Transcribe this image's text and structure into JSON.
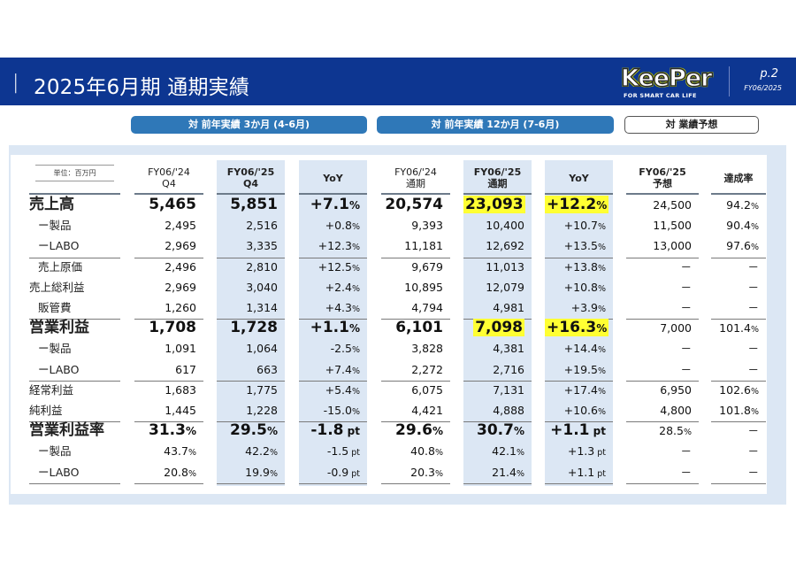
{
  "header": {
    "bar": "|",
    "title": "2025年6月期 通期実績",
    "logo_word": "KeePer",
    "logo_tagline": "FOR SMART CAR LIFE",
    "page_number": "p.2",
    "fiscal_label": "FY06/2025",
    "background_color": "#0d3691"
  },
  "section_pills": [
    {
      "label": "対 前年実績  3か月 (4-6月)",
      "style": "blue"
    },
    {
      "label": "対 前年実績  12か月 (7-6月)",
      "style": "blue"
    },
    {
      "label": "対 業績予想",
      "style": "outline"
    }
  ],
  "table": {
    "unit_label": "単位：百万円",
    "columns": [
      {
        "line1": "FY06/'24",
        "line2": "Q4",
        "bold": false,
        "shaded": false
      },
      {
        "line1": "FY06/'25",
        "line2": "Q4",
        "bold": true,
        "shaded": true
      },
      {
        "line1": "YoY",
        "line2": "",
        "bold": true,
        "shaded": true
      },
      {
        "line1": "FY06/'24",
        "line2": "通期",
        "bold": false,
        "shaded": false
      },
      {
        "line1": "FY06/'25",
        "line2": "通期",
        "bold": true,
        "shaded": true
      },
      {
        "line1": "YoY",
        "line2": "",
        "bold": true,
        "shaded": true
      },
      {
        "line1": "FY06/'25",
        "line2": "予想",
        "bold": true,
        "shaded": false
      },
      {
        "line1": "達成率",
        "line2": "",
        "bold": true,
        "shaded": false
      }
    ],
    "rows": [
      {
        "label": "売上高",
        "big": true,
        "values": [
          "5,465",
          "5,851",
          "+7.1",
          "20,574",
          "23,093",
          "+12.2",
          "24,500",
          "94.2"
        ],
        "units": [
          "",
          "",
          "%",
          "",
          "",
          "%",
          "",
          "%"
        ],
        "highlight": [
          4,
          5
        ]
      },
      {
        "label": "ー製品",
        "big": false,
        "values": [
          "2,495",
          "2,516",
          "+0.8",
          "9,393",
          "10,400",
          "+10.7",
          "11,500",
          "90.4"
        ],
        "units": [
          "",
          "",
          "%",
          "",
          "",
          "%",
          "",
          "%"
        ]
      },
      {
        "label": "ーLABO",
        "big": false,
        "values": [
          "2,969",
          "3,335",
          "+12.3",
          "11,181",
          "12,692",
          "+13.5",
          "13,000",
          "97.6"
        ],
        "units": [
          "",
          "",
          "%",
          "",
          "",
          "%",
          "",
          "%"
        ]
      },
      {
        "label": "売上原価",
        "big": false,
        "values": [
          "2,496",
          "2,810",
          "+12.5",
          "9,679",
          "11,013",
          "+13.8",
          "ー",
          "ー"
        ],
        "units": [
          "",
          "",
          "%",
          "",
          "",
          "%",
          "",
          ""
        ]
      },
      {
        "label": "売上総利益",
        "big": false,
        "values": [
          "2,969",
          "3,040",
          "+2.4",
          "10,895",
          "12,079",
          "+10.8",
          "ー",
          "ー"
        ],
        "units": [
          "",
          "",
          "%",
          "",
          "",
          "%",
          "",
          ""
        ]
      },
      {
        "label": "販管費",
        "big": false,
        "values": [
          "1,260",
          "1,314",
          "+4.3",
          "4,794",
          "4,981",
          "+3.9",
          "ー",
          "ー"
        ],
        "units": [
          "",
          "",
          "%",
          "",
          "",
          "%",
          "",
          ""
        ]
      },
      {
        "label": "営業利益",
        "big": true,
        "values": [
          "1,708",
          "1,728",
          "+1.1",
          "6,101",
          "7,098",
          "+16.3",
          "7,000",
          "101.4"
        ],
        "units": [
          "",
          "",
          "%",
          "",
          "",
          "%",
          "",
          "%"
        ],
        "highlight": [
          4,
          5
        ]
      },
      {
        "label": "ー製品",
        "big": false,
        "values": [
          "1,091",
          "1,064",
          "-2.5",
          "3,828",
          "4,381",
          "+14.4",
          "ー",
          "ー"
        ],
        "units": [
          "",
          "",
          "%",
          "",
          "",
          "%",
          "",
          ""
        ]
      },
      {
        "label": "ーLABO",
        "big": false,
        "values": [
          "617",
          "663",
          "+7.4",
          "2,272",
          "2,716",
          "+19.5",
          "ー",
          "ー"
        ],
        "units": [
          "",
          "",
          "%",
          "",
          "",
          "%",
          "",
          ""
        ]
      },
      {
        "label": "経常利益",
        "big": false,
        "values": [
          "1,683",
          "1,775",
          "+5.4",
          "6,075",
          "7,131",
          "+17.4",
          "6,950",
          "102.6"
        ],
        "units": [
          "",
          "",
          "%",
          "",
          "",
          "%",
          "",
          "%"
        ]
      },
      {
        "label": "純利益",
        "big": false,
        "values": [
          "1,445",
          "1,228",
          "-15.0",
          "4,421",
          "4,888",
          "+10.6",
          "4,800",
          "101.8"
        ],
        "units": [
          "",
          "",
          "%",
          "",
          "",
          "%",
          "",
          "%"
        ]
      },
      {
        "label": "営業利益率",
        "big": true,
        "values": [
          "31.3",
          "29.5",
          "-1.8",
          "29.6",
          "30.7",
          "+1.1",
          "28.5",
          "ー"
        ],
        "units": [
          "%",
          "%",
          " pt",
          "%",
          "%",
          " pt",
          "%",
          ""
        ]
      },
      {
        "label": "ー製品",
        "big": false,
        "values": [
          "43.7",
          "42.2",
          "-1.5",
          "40.8",
          "42.1",
          "+1.3",
          "ー",
          "ー"
        ],
        "units": [
          "%",
          "%",
          " pt",
          "%",
          "%",
          " pt",
          "",
          ""
        ]
      },
      {
        "label": "ーLABO",
        "big": false,
        "values": [
          "20.8",
          "19.9",
          "-0.9",
          "20.3",
          "21.4",
          "+1.1",
          "ー",
          "ー"
        ],
        "units": [
          "%",
          "%",
          " pt",
          "%",
          "%",
          " pt",
          "",
          ""
        ]
      }
    ]
  },
  "colors": {
    "header_bg": "#0d3691",
    "pill_blue": "#2f78b8",
    "panel_bg": "#dce7f4",
    "highlight": "#ffff33"
  }
}
